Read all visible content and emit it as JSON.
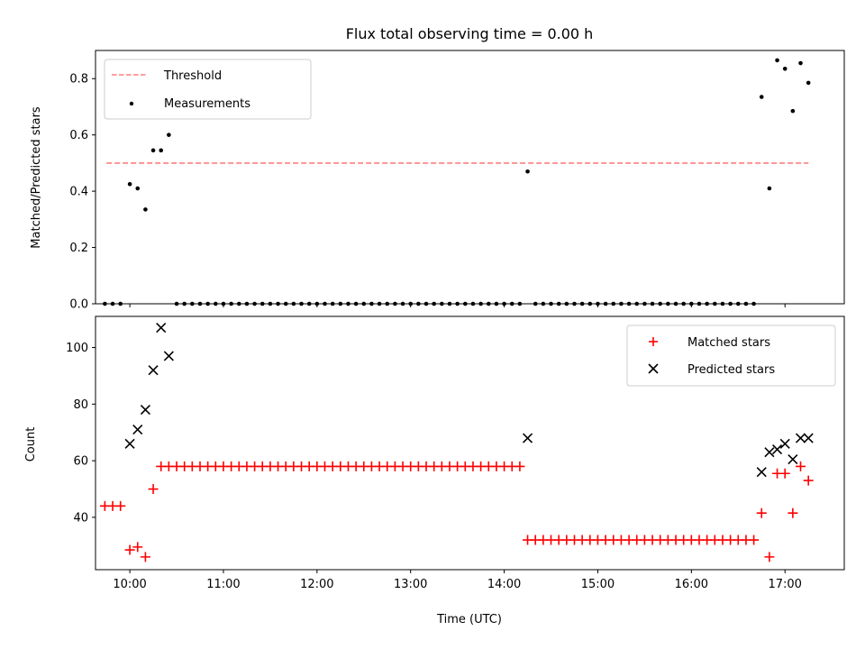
{
  "figure": {
    "title": "Flux total observing time = 0.00 h",
    "xlabel": "Time (UTC)"
  },
  "colors": {
    "threshold": "#ff7f7f",
    "measurements": "#000000",
    "matched": "#ff0000",
    "predicted": "#000000"
  },
  "chart_data": [
    {
      "type": "scatter",
      "panel": "top",
      "title": "Flux total observing time = 0.00 h",
      "xlabel": "",
      "ylabel": "Matched/Predicted stars",
      "xlim": [
        "09:38",
        "17:38"
      ],
      "ylim": [
        0,
        0.9
      ],
      "x_ticks": [
        "10:00",
        "11:00",
        "12:00",
        "13:00",
        "14:00",
        "15:00",
        "16:00",
        "17:00"
      ],
      "y_ticks": [
        "0.0",
        "0.2",
        "0.4",
        "0.6",
        "0.8"
      ],
      "grid": false,
      "legend": {
        "position": "top-left",
        "entries": [
          "Threshold",
          "Measurements"
        ]
      },
      "threshold": {
        "name": "Threshold",
        "value": 0.5,
        "x_start": "09:45",
        "x_end": "17:15",
        "style": "dashed"
      },
      "series": [
        {
          "name": "Measurements",
          "marker": "dot",
          "points": [
            [
              "09:44",
              0
            ],
            [
              "09:49",
              0
            ],
            [
              "09:54",
              0
            ],
            [
              "10:00",
              0.425
            ],
            [
              "10:05",
              0.41
            ],
            [
              "10:10",
              0.335
            ],
            [
              "10:15",
              0.545
            ],
            [
              "10:20",
              0.545
            ],
            [
              "10:25",
              0.6
            ],
            [
              "10:30",
              0
            ],
            [
              "10:35",
              0
            ],
            [
              "10:40",
              0
            ],
            [
              "10:45",
              0
            ],
            [
              "10:50",
              0
            ],
            [
              "10:55",
              0
            ],
            [
              "11:00",
              0
            ],
            [
              "11:05",
              0
            ],
            [
              "11:10",
              0
            ],
            [
              "11:15",
              0
            ],
            [
              "11:20",
              0
            ],
            [
              "11:25",
              0
            ],
            [
              "11:30",
              0
            ],
            [
              "11:35",
              0
            ],
            [
              "11:40",
              0
            ],
            [
              "11:45",
              0
            ],
            [
              "11:50",
              0
            ],
            [
              "11:55",
              0
            ],
            [
              "12:00",
              0
            ],
            [
              "12:05",
              0
            ],
            [
              "12:10",
              0
            ],
            [
              "12:15",
              0
            ],
            [
              "12:20",
              0
            ],
            [
              "12:25",
              0
            ],
            [
              "12:30",
              0
            ],
            [
              "12:35",
              0
            ],
            [
              "12:40",
              0
            ],
            [
              "12:45",
              0
            ],
            [
              "12:50",
              0
            ],
            [
              "12:55",
              0
            ],
            [
              "13:00",
              0
            ],
            [
              "13:05",
              0
            ],
            [
              "13:10",
              0
            ],
            [
              "13:15",
              0
            ],
            [
              "13:20",
              0
            ],
            [
              "13:25",
              0
            ],
            [
              "13:30",
              0
            ],
            [
              "13:35",
              0
            ],
            [
              "13:40",
              0
            ],
            [
              "13:45",
              0
            ],
            [
              "13:50",
              0
            ],
            [
              "13:55",
              0
            ],
            [
              "14:00",
              0
            ],
            [
              "14:05",
              0
            ],
            [
              "14:10",
              0
            ],
            [
              "14:15",
              0.47
            ],
            [
              "14:20",
              0
            ],
            [
              "14:25",
              0
            ],
            [
              "14:30",
              0
            ],
            [
              "14:35",
              0
            ],
            [
              "14:40",
              0
            ],
            [
              "14:45",
              0
            ],
            [
              "14:50",
              0
            ],
            [
              "14:55",
              0
            ],
            [
              "15:00",
              0
            ],
            [
              "15:05",
              0
            ],
            [
              "15:10",
              0
            ],
            [
              "15:15",
              0
            ],
            [
              "15:20",
              0
            ],
            [
              "15:25",
              0
            ],
            [
              "15:30",
              0
            ],
            [
              "15:35",
              0
            ],
            [
              "15:40",
              0
            ],
            [
              "15:45",
              0
            ],
            [
              "15:50",
              0
            ],
            [
              "15:55",
              0
            ],
            [
              "16:00",
              0
            ],
            [
              "16:05",
              0
            ],
            [
              "16:10",
              0
            ],
            [
              "16:15",
              0
            ],
            [
              "16:20",
              0
            ],
            [
              "16:25",
              0
            ],
            [
              "16:30",
              0
            ],
            [
              "16:35",
              0
            ],
            [
              "16:40",
              0
            ],
            [
              "16:45",
              0.735
            ],
            [
              "16:50",
              0.41
            ],
            [
              "16:55",
              0.865
            ],
            [
              "17:00",
              0.835
            ],
            [
              "17:05",
              0.685
            ],
            [
              "17:10",
              0.855
            ],
            [
              "17:15",
              0.785
            ]
          ]
        }
      ]
    },
    {
      "type": "scatter",
      "panel": "bottom",
      "title": "",
      "xlabel": "Time (UTC)",
      "ylabel": "Count",
      "xlim": [
        "09:38",
        "17:38"
      ],
      "ylim": [
        21.5,
        111
      ],
      "x_ticks": [
        "10:00",
        "11:00",
        "12:00",
        "13:00",
        "14:00",
        "15:00",
        "16:00",
        "17:00"
      ],
      "y_ticks": [
        "40",
        "60",
        "80",
        "100"
      ],
      "grid": false,
      "legend": {
        "position": "top-right",
        "entries": [
          "Matched stars",
          "Predicted stars"
        ]
      },
      "series": [
        {
          "name": "Matched stars",
          "marker": "plus",
          "points": [
            [
              "09:44",
              44
            ],
            [
              "09:49",
              44
            ],
            [
              "09:54",
              44
            ],
            [
              "10:00",
              28.5
            ],
            [
              "10:05",
              29.5
            ],
            [
              "10:10",
              26
            ],
            [
              "10:15",
              50
            ],
            [
              "10:20",
              58
            ],
            [
              "10:25",
              58
            ],
            [
              "10:30",
              58
            ],
            [
              "10:35",
              58
            ],
            [
              "10:40",
              58
            ],
            [
              "10:45",
              58
            ],
            [
              "10:50",
              58
            ],
            [
              "10:55",
              58
            ],
            [
              "11:00",
              58
            ],
            [
              "11:05",
              58
            ],
            [
              "11:10",
              58
            ],
            [
              "11:15",
              58
            ],
            [
              "11:20",
              58
            ],
            [
              "11:25",
              58
            ],
            [
              "11:30",
              58
            ],
            [
              "11:35",
              58
            ],
            [
              "11:40",
              58
            ],
            [
              "11:45",
              58
            ],
            [
              "11:50",
              58
            ],
            [
              "11:55",
              58
            ],
            [
              "12:00",
              58
            ],
            [
              "12:05",
              58
            ],
            [
              "12:10",
              58
            ],
            [
              "12:15",
              58
            ],
            [
              "12:20",
              58
            ],
            [
              "12:25",
              58
            ],
            [
              "12:30",
              58
            ],
            [
              "12:35",
              58
            ],
            [
              "12:40",
              58
            ],
            [
              "12:45",
              58
            ],
            [
              "12:50",
              58
            ],
            [
              "12:55",
              58
            ],
            [
              "13:00",
              58
            ],
            [
              "13:05",
              58
            ],
            [
              "13:10",
              58
            ],
            [
              "13:15",
              58
            ],
            [
              "13:20",
              58
            ],
            [
              "13:25",
              58
            ],
            [
              "13:30",
              58
            ],
            [
              "13:35",
              58
            ],
            [
              "13:40",
              58
            ],
            [
              "13:45",
              58
            ],
            [
              "13:50",
              58
            ],
            [
              "13:55",
              58
            ],
            [
              "14:00",
              58
            ],
            [
              "14:05",
              58
            ],
            [
              "14:10",
              58
            ],
            [
              "14:15",
              32
            ],
            [
              "14:20",
              32
            ],
            [
              "14:25",
              32
            ],
            [
              "14:30",
              32
            ],
            [
              "14:35",
              32
            ],
            [
              "14:40",
              32
            ],
            [
              "14:45",
              32
            ],
            [
              "14:50",
              32
            ],
            [
              "14:55",
              32
            ],
            [
              "15:00",
              32
            ],
            [
              "15:05",
              32
            ],
            [
              "15:10",
              32
            ],
            [
              "15:15",
              32
            ],
            [
              "15:20",
              32
            ],
            [
              "15:25",
              32
            ],
            [
              "15:30",
              32
            ],
            [
              "15:35",
              32
            ],
            [
              "15:40",
              32
            ],
            [
              "15:45",
              32
            ],
            [
              "15:50",
              32
            ],
            [
              "15:55",
              32
            ],
            [
              "16:00",
              32
            ],
            [
              "16:05",
              32
            ],
            [
              "16:10",
              32
            ],
            [
              "16:15",
              32
            ],
            [
              "16:20",
              32
            ],
            [
              "16:25",
              32
            ],
            [
              "16:30",
              32
            ],
            [
              "16:35",
              32
            ],
            [
              "16:40",
              32
            ],
            [
              "16:45",
              41.5
            ],
            [
              "16:50",
              26
            ],
            [
              "16:55",
              55.5
            ],
            [
              "17:00",
              55.5
            ],
            [
              "17:05",
              41.5
            ],
            [
              "17:10",
              58
            ],
            [
              "17:15",
              53
            ]
          ]
        },
        {
          "name": "Predicted stars",
          "marker": "x",
          "points": [
            [
              "10:00",
              66
            ],
            [
              "10:05",
              71
            ],
            [
              "10:10",
              78
            ],
            [
              "10:15",
              92
            ],
            [
              "10:20",
              107
            ],
            [
              "10:25",
              97
            ],
            [
              "14:15",
              68
            ],
            [
              "16:45",
              56
            ],
            [
              "16:50",
              63
            ],
            [
              "16:55",
              64
            ],
            [
              "17:00",
              66
            ],
            [
              "17:05",
              60.5
            ],
            [
              "17:10",
              68
            ],
            [
              "17:15",
              68
            ]
          ]
        }
      ]
    }
  ]
}
